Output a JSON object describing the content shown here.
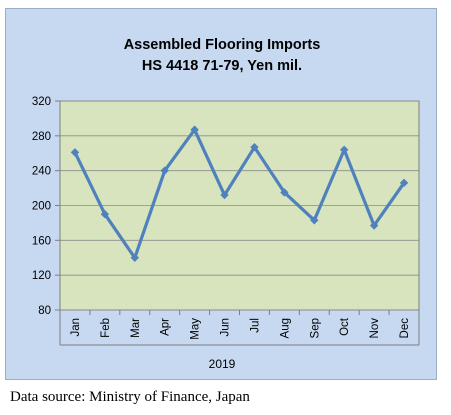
{
  "chart_data": {
    "type": "line",
    "title": "Assembled Flooring Imports",
    "subtitle": "HS 4418 71-79, Yen mil.",
    "categories": [
      "Jan",
      "Feb",
      "Mar",
      "Apr",
      "May",
      "Jun",
      "Jul",
      "Aug",
      "Sep",
      "Oct",
      "Nov",
      "Dec"
    ],
    "x_group_label": "2019",
    "series": [
      {
        "values": [
          261,
          190,
          140,
          240,
          287,
          212,
          267,
          215,
          183,
          264,
          177,
          226
        ]
      }
    ],
    "ylim": [
      80,
      320
    ],
    "yticks": [
      "80",
      "120",
      "160",
      "200",
      "240",
      "280",
      "320"
    ],
    "grid": true,
    "colors": {
      "line": "#4f81bd",
      "plot_bg": "#d7e4bd",
      "chart_bg": "#c6d9f1",
      "grid": "#8c8c8c"
    }
  },
  "footer": {
    "data_source": "Data source: Ministry of Finance, Japan"
  }
}
